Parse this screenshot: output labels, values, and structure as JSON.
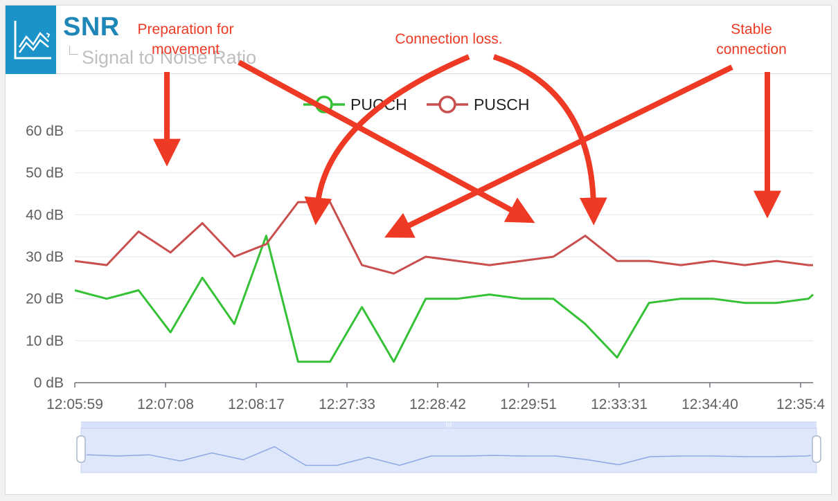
{
  "header": {
    "title": "SNR",
    "subtitle": "Signal to Noise Ratio"
  },
  "annotations": {
    "preparation": "Preparation for movement",
    "connection_loss": "Connection loss.",
    "stable": "Stable connection"
  },
  "colors": {
    "pucch": "#35c135",
    "pusch": "#c94f4f",
    "annotation": "#ee3a24",
    "grid": "#e3e8f2",
    "axis_text": "#5f5f5f",
    "accent": "#1c93c8",
    "zoom_fill": "#dfe7fb",
    "zoom_line": "#8ea8e5"
  },
  "chart_data": {
    "type": "line",
    "legend_position": "top-center",
    "grid": true,
    "ylim": [
      0,
      60
    ],
    "y_ticks": [
      "0 dB",
      "10 dB",
      "20 dB",
      "30 dB",
      "40 dB",
      "50 dB",
      "60 dB"
    ],
    "x_tick_labels": [
      "12:05:59",
      "12:07:08",
      "12:08:17",
      "12:27:33",
      "12:28:42",
      "12:29:51",
      "12:33:31",
      "12:34:40",
      "12:35:4"
    ],
    "x": [
      0,
      0.35,
      0.7,
      1.05,
      1.4,
      1.75,
      2.1,
      2.45,
      2.8,
      3.15,
      3.5,
      3.85,
      4.2,
      4.55,
      4.9,
      5.25,
      5.6,
      5.95,
      6.3,
      6.65,
      7.0,
      7.35,
      7.7,
      8.05,
      8.1
    ],
    "series": [
      {
        "name": "PUCCH",
        "values": [
          22,
          20,
          22,
          12,
          25,
          14,
          35,
          5,
          5,
          18,
          5,
          20,
          20,
          21,
          20,
          20,
          14,
          6,
          19,
          20,
          20,
          19,
          19,
          20,
          21
        ]
      },
      {
        "name": "PUSCH",
        "values": [
          29,
          28,
          36,
          31,
          38,
          30,
          33,
          43,
          43,
          28,
          26,
          30,
          29,
          28,
          29,
          30,
          35,
          29,
          29,
          28,
          29,
          28,
          29,
          28,
          28
        ]
      }
    ]
  }
}
